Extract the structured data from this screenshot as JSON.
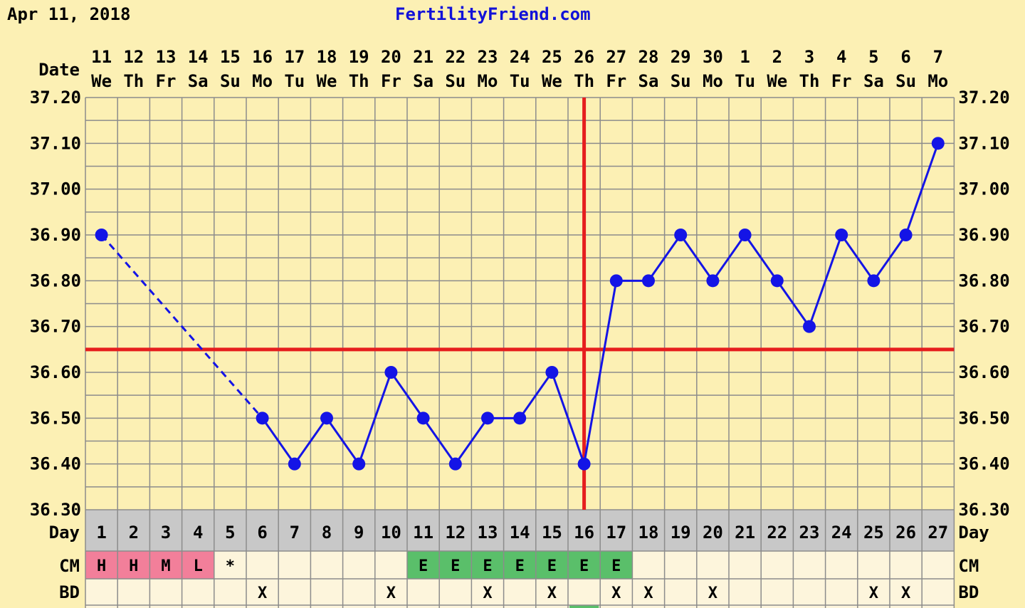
{
  "header": {
    "print_date": "Apr 11, 2018",
    "site": "FertilityFriend.com"
  },
  "row_labels": {
    "date": "Date",
    "day": "Day",
    "cm": "CM",
    "bd": "BD"
  },
  "colors": {
    "background": "#fcf0b4",
    "grid": "#8c8c8c",
    "line": "#1414e6",
    "coverline": "#e61e1e",
    "day_row": "#c8c8c8",
    "cell_light": "#fdf5dc",
    "cm_menstrual": "#f27f9a",
    "cm_egg_white": "#5abf6a"
  },
  "chart_data": {
    "type": "line",
    "title": "",
    "xlabel": "",
    "ylabel": "",
    "ylim": [
      36.3,
      37.2
    ],
    "y_ticks": [
      "37.20",
      "37.10",
      "37.00",
      "36.90",
      "36.80",
      "36.70",
      "36.60",
      "36.50",
      "36.40",
      "36.30"
    ],
    "dates": [
      "11",
      "12",
      "13",
      "14",
      "15",
      "16",
      "17",
      "18",
      "19",
      "20",
      "21",
      "22",
      "23",
      "24",
      "25",
      "26",
      "27",
      "28",
      "29",
      "30",
      "1",
      "2",
      "3",
      "4",
      "5",
      "6",
      "7"
    ],
    "weekdays": [
      "We",
      "Th",
      "Fr",
      "Sa",
      "Su",
      "Mo",
      "Tu",
      "We",
      "Th",
      "Fr",
      "Sa",
      "Su",
      "Mo",
      "Tu",
      "We",
      "Th",
      "Fr",
      "Sa",
      "Su",
      "Mo",
      "Tu",
      "We",
      "Th",
      "Fr",
      "Sa",
      "Su",
      "Mo"
    ],
    "days": [
      "1",
      "2",
      "3",
      "4",
      "5",
      "6",
      "7",
      "8",
      "9",
      "10",
      "11",
      "12",
      "13",
      "14",
      "15",
      "16",
      "17",
      "18",
      "19",
      "20",
      "21",
      "22",
      "23",
      "24",
      "25",
      "26",
      "27"
    ],
    "temperatures": [
      36.9,
      null,
      null,
      null,
      null,
      36.5,
      36.4,
      36.5,
      36.4,
      36.6,
      36.5,
      36.4,
      36.5,
      36.5,
      36.6,
      36.4,
      36.8,
      36.8,
      36.9,
      36.8,
      36.9,
      36.8,
      36.7,
      36.9,
      36.8,
      36.9,
      37.1
    ],
    "coverline": 36.65,
    "ovulation_day": 16,
    "grid": true,
    "cm": [
      "H",
      "H",
      "M",
      "L",
      "*",
      "",
      "",
      "",
      "",
      "",
      "E",
      "E",
      "E",
      "E",
      "E",
      "E",
      "E",
      "",
      "",
      "",
      "",
      "",
      "",
      "",
      "",
      "",
      ""
    ],
    "bd": [
      "",
      "",
      "",
      "",
      "",
      "X",
      "",
      "",
      "",
      "X",
      "",
      "",
      "X",
      "",
      "X",
      "",
      "X",
      "X",
      "",
      "X",
      "",
      "",
      "",
      "",
      "X",
      "X",
      ""
    ]
  }
}
